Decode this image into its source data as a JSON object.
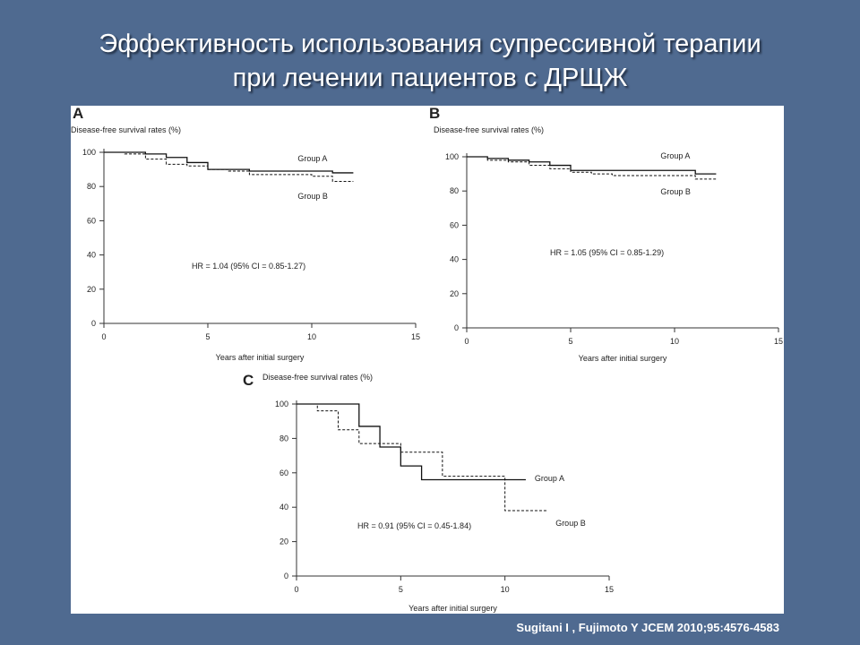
{
  "slide": {
    "title_line1": "Эффективность использования супрессивной терапии",
    "title_line2": "при лечении пациентов с ДРЩЖ",
    "citation": "Sugitani I , Fujimoto Y JCEM 2010;95:4576-4583"
  },
  "chart_data": [
    {
      "type": "line",
      "panel": "A",
      "ylabel": "Disease-free survival rates (%)",
      "xlabel": "Years after initial surgery",
      "xlim": [
        0,
        15
      ],
      "ylim": [
        0,
        100
      ],
      "xticks": [
        0,
        5,
        10,
        15
      ],
      "yticks": [
        0,
        20,
        40,
        60,
        80,
        100
      ],
      "annotation": "HR = 1.04 (95% CI = 0.85-1.27)",
      "series": [
        {
          "name": "Group A",
          "style": "solid",
          "x": [
            0,
            2,
            3,
            4,
            5,
            7,
            10,
            11,
            12
          ],
          "y": [
            100,
            99,
            97,
            94,
            90,
            89,
            89,
            88,
            88
          ]
        },
        {
          "name": "Group B",
          "style": "dashed",
          "x": [
            0,
            1,
            2,
            3,
            4,
            5,
            6,
            7,
            10,
            11,
            12
          ],
          "y": [
            100,
            99,
            96,
            93,
            92,
            90,
            89,
            87,
            86,
            83,
            83
          ]
        }
      ]
    },
    {
      "type": "line",
      "panel": "B",
      "ylabel": "Disease-free survival rates (%)",
      "xlabel": "Years after initial surgery",
      "xlim": [
        0,
        15
      ],
      "ylim": [
        0,
        100
      ],
      "xticks": [
        0,
        5,
        10,
        15
      ],
      "yticks": [
        0,
        20,
        40,
        60,
        80,
        100
      ],
      "annotation": "HR = 1.05 (95% CI = 0.85-1.29)",
      "series": [
        {
          "name": "Group A",
          "style": "solid",
          "x": [
            0,
            1,
            2,
            3,
            4,
            5,
            7,
            10,
            11,
            12
          ],
          "y": [
            100,
            99,
            98,
            97,
            95,
            92,
            92,
            92,
            90,
            90
          ]
        },
        {
          "name": "Group B",
          "style": "dashed",
          "x": [
            0,
            1,
            2,
            3,
            4,
            5,
            6,
            7,
            10,
            11,
            12
          ],
          "y": [
            100,
            98,
            97,
            95,
            93,
            91,
            90,
            89,
            89,
            87,
            87
          ]
        }
      ]
    },
    {
      "type": "line",
      "panel": "C",
      "ylabel": "Disease-free survival rates (%)",
      "xlabel": "Years after initial surgery",
      "xlim": [
        0,
        15
      ],
      "ylim": [
        0,
        100
      ],
      "xticks": [
        0,
        5,
        10,
        15
      ],
      "yticks": [
        0,
        20,
        40,
        60,
        80,
        100
      ],
      "annotation": "HR = 0.91 (95% CI = 0.45-1.84)",
      "series": [
        {
          "name": "Group A",
          "style": "solid",
          "x": [
            0,
            3,
            4,
            5,
            6,
            10,
            11
          ],
          "y": [
            100,
            87,
            75,
            64,
            56,
            56,
            56
          ]
        },
        {
          "name": "Group B",
          "style": "dashed",
          "x": [
            0,
            1,
            2,
            3,
            5,
            7,
            10,
            12
          ],
          "y": [
            100,
            96,
            85,
            77,
            72,
            58,
            38,
            38
          ]
        }
      ]
    }
  ]
}
